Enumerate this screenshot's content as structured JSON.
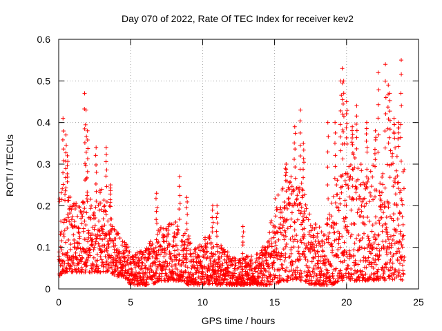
{
  "chart_data": {
    "type": "scatter",
    "title": "Day 070 of 2022, Rate Of TEC Index for receiver kev2",
    "xlabel": "GPS time / hours",
    "ylabel": "ROTI / TECUs",
    "xlim": [
      0,
      25
    ],
    "ylim": [
      0,
      0.6
    ],
    "x_ticks": [
      "0",
      "5",
      "10",
      "15",
      "20",
      "25"
    ],
    "y_ticks": [
      "0",
      "0.1",
      "0.2",
      "0.3",
      "0.4",
      "0.5",
      "0.6"
    ],
    "grid": true,
    "marker": "+",
    "series_color": "#ff0000",
    "envelope": {
      "x": [
        0.0,
        0.5,
        1.0,
        1.5,
        2.0,
        2.5,
        3.0,
        3.5,
        4.0,
        4.5,
        5.0,
        5.5,
        6.0,
        6.5,
        7.0,
        7.5,
        8.0,
        8.5,
        9.0,
        9.5,
        10.0,
        10.5,
        11.0,
        11.5,
        12.0,
        12.5,
        13.0,
        13.5,
        14.0,
        14.5,
        15.0,
        15.5,
        16.0,
        16.5,
        17.0,
        17.5,
        18.0,
        18.5,
        19.0,
        19.5,
        20.0,
        20.5,
        21.0,
        21.5,
        22.0,
        22.5,
        23.0,
        23.5,
        24.0
      ],
      "low": [
        0.03,
        0.04,
        0.04,
        0.04,
        0.04,
        0.04,
        0.04,
        0.04,
        0.03,
        0.03,
        0.01,
        0.01,
        0.01,
        0.01,
        0.02,
        0.02,
        0.02,
        0.02,
        0.01,
        0.01,
        0.01,
        0.01,
        0.01,
        0.01,
        0.01,
        0.01,
        0.01,
        0.01,
        0.01,
        0.01,
        0.01,
        0.02,
        0.02,
        0.02,
        0.02,
        0.01,
        0.01,
        0.01,
        0.01,
        0.02,
        0.02,
        0.02,
        0.02,
        0.02,
        0.02,
        0.02,
        0.02,
        0.02,
        0.02
      ],
      "high": [
        0.26,
        0.25,
        0.21,
        0.2,
        0.24,
        0.2,
        0.26,
        0.21,
        0.15,
        0.12,
        0.09,
        0.09,
        0.1,
        0.12,
        0.15,
        0.15,
        0.17,
        0.14,
        0.13,
        0.1,
        0.12,
        0.13,
        0.11,
        0.1,
        0.08,
        0.07,
        0.08,
        0.08,
        0.09,
        0.12,
        0.22,
        0.24,
        0.27,
        0.28,
        0.25,
        0.17,
        0.15,
        0.15,
        0.22,
        0.28,
        0.35,
        0.33,
        0.3,
        0.32,
        0.3,
        0.28,
        0.34,
        0.36,
        0.3
      ]
    },
    "spikes": [
      {
        "x": 0.3,
        "y": 0.41
      },
      {
        "x": 0.5,
        "y": 0.37
      },
      {
        "x": 0.6,
        "y": 0.32
      },
      {
        "x": 1.8,
        "y": 0.47
      },
      {
        "x": 1.9,
        "y": 0.43
      },
      {
        "x": 2.0,
        "y": 0.38
      },
      {
        "x": 2.6,
        "y": 0.34
      },
      {
        "x": 3.3,
        "y": 0.34
      },
      {
        "x": 3.6,
        "y": 0.25
      },
      {
        "x": 6.8,
        "y": 0.23
      },
      {
        "x": 8.4,
        "y": 0.27
      },
      {
        "x": 8.9,
        "y": 0.22
      },
      {
        "x": 10.7,
        "y": 0.2
      },
      {
        "x": 11.0,
        "y": 0.2
      },
      {
        "x": 12.8,
        "y": 0.15
      },
      {
        "x": 15.8,
        "y": 0.3
      },
      {
        "x": 16.4,
        "y": 0.39
      },
      {
        "x": 16.8,
        "y": 0.43
      },
      {
        "x": 17.0,
        "y": 0.35
      },
      {
        "x": 18.7,
        "y": 0.4
      },
      {
        "x": 19.2,
        "y": 0.4
      },
      {
        "x": 19.6,
        "y": 0.5
      },
      {
        "x": 19.7,
        "y": 0.53
      },
      {
        "x": 19.8,
        "y": 0.5
      },
      {
        "x": 20.0,
        "y": 0.45
      },
      {
        "x": 20.4,
        "y": 0.39
      },
      {
        "x": 20.7,
        "y": 0.44
      },
      {
        "x": 21.4,
        "y": 0.4
      },
      {
        "x": 22.0,
        "y": 0.38
      },
      {
        "x": 22.2,
        "y": 0.52
      },
      {
        "x": 22.7,
        "y": 0.54
      },
      {
        "x": 22.9,
        "y": 0.49
      },
      {
        "x": 23.0,
        "y": 0.47
      },
      {
        "x": 23.3,
        "y": 0.41
      },
      {
        "x": 23.6,
        "y": 0.4
      },
      {
        "x": 23.8,
        "y": 0.55
      }
    ]
  }
}
